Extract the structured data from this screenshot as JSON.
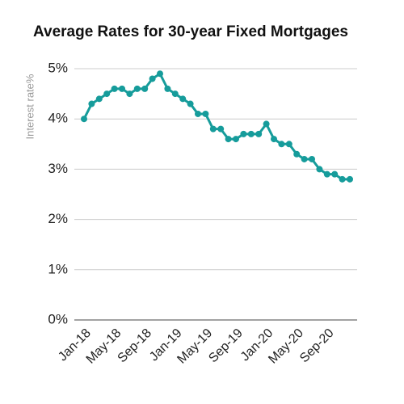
{
  "chart_data": {
    "type": "line",
    "title": "Average Rates for 30-year Fixed Mortgages",
    "y_label": "Interest rate%",
    "categories": [
      "Jan-18",
      null,
      null,
      null,
      "May-18",
      null,
      null,
      null,
      "Sep-18",
      null,
      null,
      null,
      "Jan-19",
      null,
      null,
      null,
      "May-19",
      null,
      null,
      null,
      "Sep-19",
      null,
      null,
      null,
      "Jan-20",
      null,
      null,
      null,
      "May-20",
      null,
      null,
      null,
      "Sep-20",
      null,
      null,
      null
    ],
    "series": [
      {
        "name": "Interest rate",
        "color": "#169c9b",
        "values": [
          4.0,
          4.3,
          4.4,
          4.5,
          4.6,
          4.6,
          4.5,
          4.6,
          4.6,
          4.8,
          4.9,
          4.6,
          4.5,
          4.4,
          4.3,
          4.1,
          4.1,
          3.8,
          3.8,
          3.6,
          3.6,
          3.7,
          3.7,
          3.7,
          3.9,
          3.6,
          3.5,
          3.5,
          3.3,
          3.2,
          3.2,
          3.0,
          2.9,
          2.9,
          2.8,
          2.8
        ]
      }
    ],
    "ylim": [
      0,
      5
    ],
    "yticks": [
      {
        "value": 0,
        "label": "0%"
      },
      {
        "value": 1,
        "label": "1%"
      },
      {
        "value": 2,
        "label": "2%"
      },
      {
        "value": 3,
        "label": "3%"
      },
      {
        "value": 4,
        "label": "4%"
      },
      {
        "value": 5,
        "label": "5%"
      }
    ],
    "grid": true
  }
}
